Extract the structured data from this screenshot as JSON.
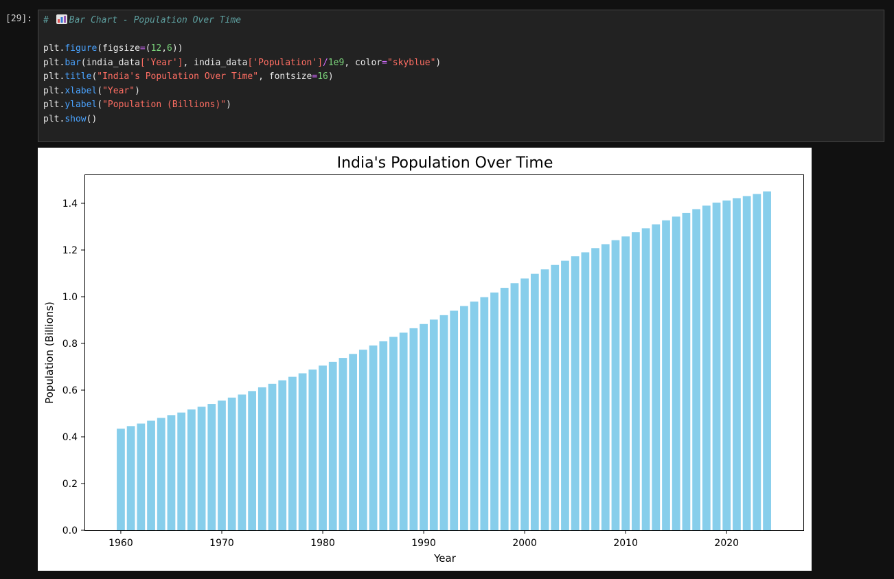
{
  "cell": {
    "prompt": "[29]:",
    "comment_hash": "# ",
    "comment_text": "Bar Chart - Population Over Time",
    "comment_icon": "bar-chart-emoji-icon",
    "lines": [
      [
        "plt",
        ".",
        "figure",
        "(figsize",
        "=",
        "(",
        "12",
        ",",
        "6",
        "))"
      ],
      [
        "plt",
        ".",
        "bar",
        "(india_data",
        "[",
        "'Year'",
        "]",
        ", india_data",
        "[",
        "'Population'",
        "]",
        "/",
        "1e9",
        ", color",
        "=",
        "\"skyblue\"",
        ")"
      ],
      [
        "plt",
        ".",
        "title",
        "(",
        "\"India's Population Over Time\"",
        ", fontsize",
        "=",
        "16",
        ")"
      ],
      [
        "plt",
        ".",
        "xlabel",
        "(",
        "\"Year\"",
        ")"
      ],
      [
        "plt",
        ".",
        "ylabel",
        "(",
        "\"Population (Billions)\"",
        ")"
      ],
      [
        "plt",
        ".",
        "show",
        "()"
      ]
    ]
  },
  "colors": {
    "bar": "#87ceeb",
    "background": "#111111",
    "cell_background": "#222222"
  },
  "chart_data": {
    "type": "bar",
    "title": "India's Population Over Time",
    "xlabel": "Year",
    "ylabel": "Population (Billions)",
    "x": [
      1960,
      1961,
      1962,
      1963,
      1964,
      1965,
      1966,
      1967,
      1968,
      1969,
      1970,
      1971,
      1972,
      1973,
      1974,
      1975,
      1976,
      1977,
      1978,
      1979,
      1980,
      1981,
      1982,
      1983,
      1984,
      1985,
      1986,
      1987,
      1988,
      1989,
      1990,
      1991,
      1992,
      1993,
      1994,
      1995,
      1996,
      1997,
      1998,
      1999,
      2000,
      2001,
      2002,
      2003,
      2004,
      2005,
      2006,
      2007,
      2008,
      2009,
      2010,
      2011,
      2012,
      2013,
      2014,
      2015,
      2016,
      2017,
      2018,
      2019,
      2020,
      2021,
      2022,
      2023,
      2024
    ],
    "values": [
      0.435,
      0.446,
      0.457,
      0.469,
      0.481,
      0.493,
      0.504,
      0.517,
      0.529,
      0.541,
      0.555,
      0.568,
      0.581,
      0.596,
      0.612,
      0.627,
      0.642,
      0.657,
      0.672,
      0.688,
      0.705,
      0.721,
      0.738,
      0.755,
      0.773,
      0.791,
      0.809,
      0.828,
      0.846,
      0.865,
      0.883,
      0.902,
      0.921,
      0.94,
      0.96,
      0.979,
      0.998,
      1.018,
      1.038,
      1.058,
      1.078,
      1.098,
      1.117,
      1.136,
      1.154,
      1.173,
      1.19,
      1.208,
      1.225,
      1.242,
      1.258,
      1.276,
      1.293,
      1.31,
      1.327,
      1.343,
      1.359,
      1.375,
      1.39,
      1.403,
      1.412,
      1.422,
      1.431,
      1.44,
      1.451
    ],
    "xticks": [
      1960,
      1970,
      1980,
      1990,
      2000,
      2010,
      2020
    ],
    "yticks": [
      0.0,
      0.2,
      0.4,
      0.6,
      0.8,
      1.0,
      1.2,
      1.4
    ],
    "ytick_labels": [
      "0.0",
      "0.2",
      "0.4",
      "0.6",
      "0.8",
      "1.0",
      "1.2",
      "1.4"
    ],
    "xlim": [
      1956.4,
      2027.6
    ],
    "ylim": [
      0,
      1.5235
    ],
    "grid": false
  }
}
